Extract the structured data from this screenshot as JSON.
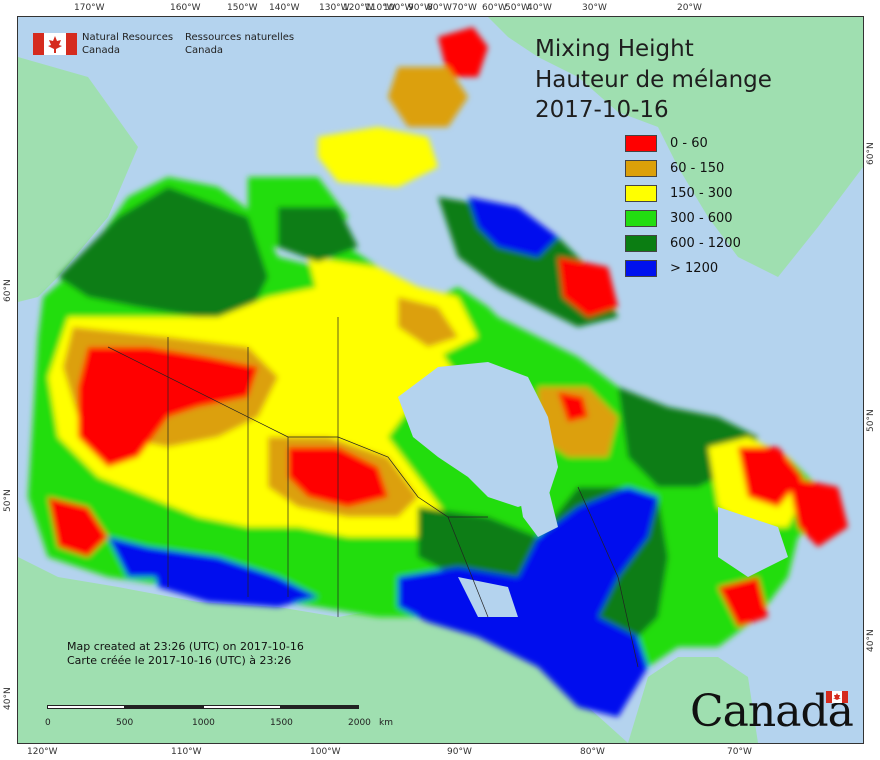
{
  "map": {
    "title_en": "Mixing Height",
    "title_fr": "Hauteur de mélange",
    "date": "2017-10-16",
    "colors": {
      "ocean": "#b4d3ee",
      "land_foreign": "#9fdfb0",
      "red": "#ff0000",
      "orange": "#dca009",
      "yellow": "#ffff00",
      "light_green": "#22dd11",
      "dark_green": "#0b7d12",
      "blue": "#0011ee"
    }
  },
  "legend": [
    {
      "label": "0 - 60",
      "color": "#ff0000"
    },
    {
      "label": "60 - 150",
      "color": "#dca009"
    },
    {
      "label": "150 - 300",
      "color": "#ffff00"
    },
    {
      "label": "300 - 600",
      "color": "#22dd11"
    },
    {
      "label": "600 - 1200",
      "color": "#0b7d12"
    },
    {
      "label": "> 1200",
      "color": "#0011ee"
    }
  ],
  "agency": {
    "name_en_1": "Natural Resources",
    "name_en_2": "Canada",
    "name_fr_1": "Ressources naturelles",
    "name_fr_2": "Canada"
  },
  "credit": {
    "en": "Map created at 23:26 (UTC) on 2017-10-16",
    "fr": "Carte créée le 2017-10-16 (UTC) à 23:26"
  },
  "scale": {
    "labels": [
      "0",
      "500",
      "1000",
      "1500",
      "2000"
    ],
    "unit": "km"
  },
  "wordmark": "Canada",
  "ticks": {
    "top": [
      "170°W",
      "160°W",
      "150°W",
      "140°W",
      "130°W",
      "120°W",
      "110°W",
      "100°W",
      "90°W",
      "80°W",
      "70°W",
      "60°W",
      "50°W",
      "40°W",
      "30°W",
      "20°W"
    ],
    "bottom": [
      "120°W",
      "110°W",
      "100°W",
      "90°W",
      "80°W",
      "70°W"
    ],
    "left": [
      "60°N",
      "50°N",
      "40°N"
    ],
    "right": [
      "60°N",
      "50°N",
      "40°N"
    ]
  }
}
